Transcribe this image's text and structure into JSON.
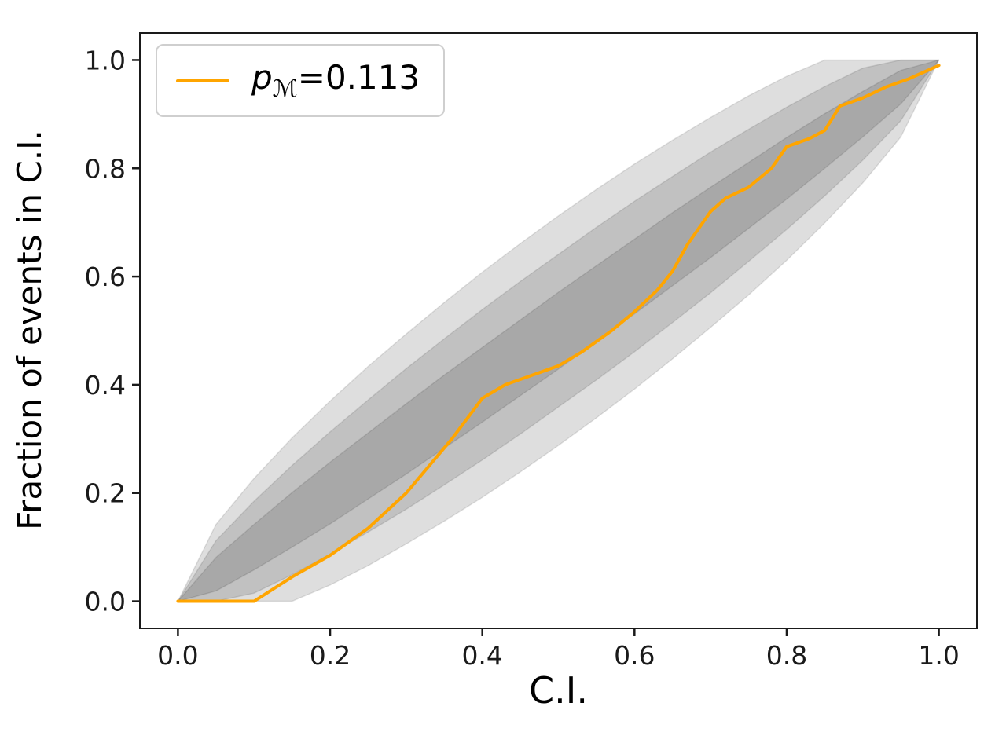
{
  "figure": {
    "xlabel": "C.I.",
    "ylabel": "Fraction of events in C.I.",
    "legend": {
      "symbol": "p",
      "subscript": "ℳ",
      "value_text": "=0.113"
    }
  },
  "chart_data": {
    "type": "line",
    "title": "",
    "xlabel": "C.I.",
    "ylabel": "Fraction of events in C.I.",
    "xlim": [
      0,
      1
    ],
    "ylim": [
      0,
      1
    ],
    "grid": false,
    "legend_position": "upper left",
    "legend_entries": [
      "pℳ=0.113"
    ],
    "spine_color": "#1a1a1a",
    "tick_label_color": "#1a1a1a",
    "xtick_values": [
      0.0,
      0.2,
      0.4,
      0.6,
      0.8,
      1.0
    ],
    "xtick_labels": [
      "0.0",
      "0.2",
      "0.4",
      "0.6",
      "0.8",
      "1.0"
    ],
    "ytick_values": [
      0.0,
      0.2,
      0.4,
      0.6,
      0.8,
      1.0
    ],
    "ytick_labels": [
      "0.0",
      "0.2",
      "0.4",
      "0.6",
      "0.8",
      "1.0"
    ],
    "series": [
      {
        "name": "pℳ=0.113",
        "color": "#FFA500",
        "x": [
          0.0,
          0.1,
          0.15,
          0.2,
          0.25,
          0.3,
          0.33,
          0.36,
          0.4,
          0.43,
          0.47,
          0.5,
          0.53,
          0.57,
          0.6,
          0.63,
          0.65,
          0.67,
          0.7,
          0.72,
          0.75,
          0.78,
          0.8,
          0.83,
          0.85,
          0.87,
          0.9,
          0.93,
          0.96,
          1.0
        ],
        "y": [
          0.0,
          0.0,
          0.045,
          0.085,
          0.135,
          0.2,
          0.25,
          0.3,
          0.375,
          0.4,
          0.42,
          0.435,
          0.46,
          0.5,
          0.535,
          0.575,
          0.61,
          0.66,
          0.72,
          0.745,
          0.765,
          0.8,
          0.84,
          0.855,
          0.87,
          0.915,
          0.93,
          0.95,
          0.965,
          0.99
        ]
      }
    ],
    "bands": [
      {
        "name": "3-sigma",
        "fill": "rgba(0,0,0,0.13)",
        "edge": "rgba(0,0,0,0.10)",
        "x": [
          0.0,
          0.05,
          0.1,
          0.15,
          0.2,
          0.25,
          0.3,
          0.35,
          0.4,
          0.45,
          0.5,
          0.55,
          0.6,
          0.65,
          0.7,
          0.75,
          0.8,
          0.85,
          0.9,
          0.95,
          1.0
        ],
        "lower": [
          0.0,
          0.0,
          0.0,
          0.0,
          0.03,
          0.066,
          0.106,
          0.148,
          0.192,
          0.239,
          0.288,
          0.339,
          0.392,
          0.448,
          0.506,
          0.566,
          0.63,
          0.699,
          0.773,
          0.858,
          1.0
        ],
        "upper": [
          0.0,
          0.142,
          0.227,
          0.302,
          0.37,
          0.434,
          0.494,
          0.552,
          0.608,
          0.661,
          0.712,
          0.761,
          0.808,
          0.852,
          0.894,
          0.934,
          0.97,
          1.0,
          1.0,
          1.0,
          1.0
        ]
      },
      {
        "name": "2-sigma",
        "fill": "rgba(0,0,0,0.13)",
        "edge": "rgba(0,0,0,0.10)",
        "x": [
          0.0,
          0.05,
          0.1,
          0.15,
          0.2,
          0.25,
          0.3,
          0.35,
          0.4,
          0.45,
          0.5,
          0.55,
          0.6,
          0.65,
          0.7,
          0.75,
          0.8,
          0.85,
          0.9,
          0.95,
          1.0
        ],
        "lower": [
          0.0,
          0.0,
          0.015,
          0.049,
          0.087,
          0.128,
          0.17,
          0.215,
          0.261,
          0.309,
          0.359,
          0.409,
          0.461,
          0.515,
          0.57,
          0.628,
          0.687,
          0.749,
          0.815,
          0.888,
          1.0
        ],
        "upper": [
          0.0,
          0.112,
          0.185,
          0.251,
          0.313,
          0.372,
          0.43,
          0.485,
          0.539,
          0.591,
          0.641,
          0.691,
          0.739,
          0.785,
          0.83,
          0.872,
          0.913,
          0.951,
          0.985,
          1.0,
          1.0
        ]
      },
      {
        "name": "1-sigma",
        "fill": "rgba(0,0,0,0.13)",
        "edge": "rgba(0,0,0,0.10)",
        "x": [
          0.0,
          0.05,
          0.1,
          0.15,
          0.2,
          0.25,
          0.3,
          0.35,
          0.4,
          0.45,
          0.5,
          0.55,
          0.6,
          0.65,
          0.7,
          0.75,
          0.8,
          0.85,
          0.9,
          0.95,
          1.0
        ],
        "lower": [
          0.0,
          0.019,
          0.058,
          0.1,
          0.143,
          0.189,
          0.235,
          0.283,
          0.331,
          0.38,
          0.429,
          0.48,
          0.531,
          0.583,
          0.635,
          0.689,
          0.743,
          0.8,
          0.858,
          0.919,
          1.0
        ],
        "upper": [
          0.0,
          0.081,
          0.142,
          0.201,
          0.257,
          0.311,
          0.365,
          0.418,
          0.469,
          0.52,
          0.571,
          0.62,
          0.669,
          0.718,
          0.765,
          0.811,
          0.857,
          0.901,
          0.942,
          0.981,
          1.0
        ]
      }
    ]
  }
}
